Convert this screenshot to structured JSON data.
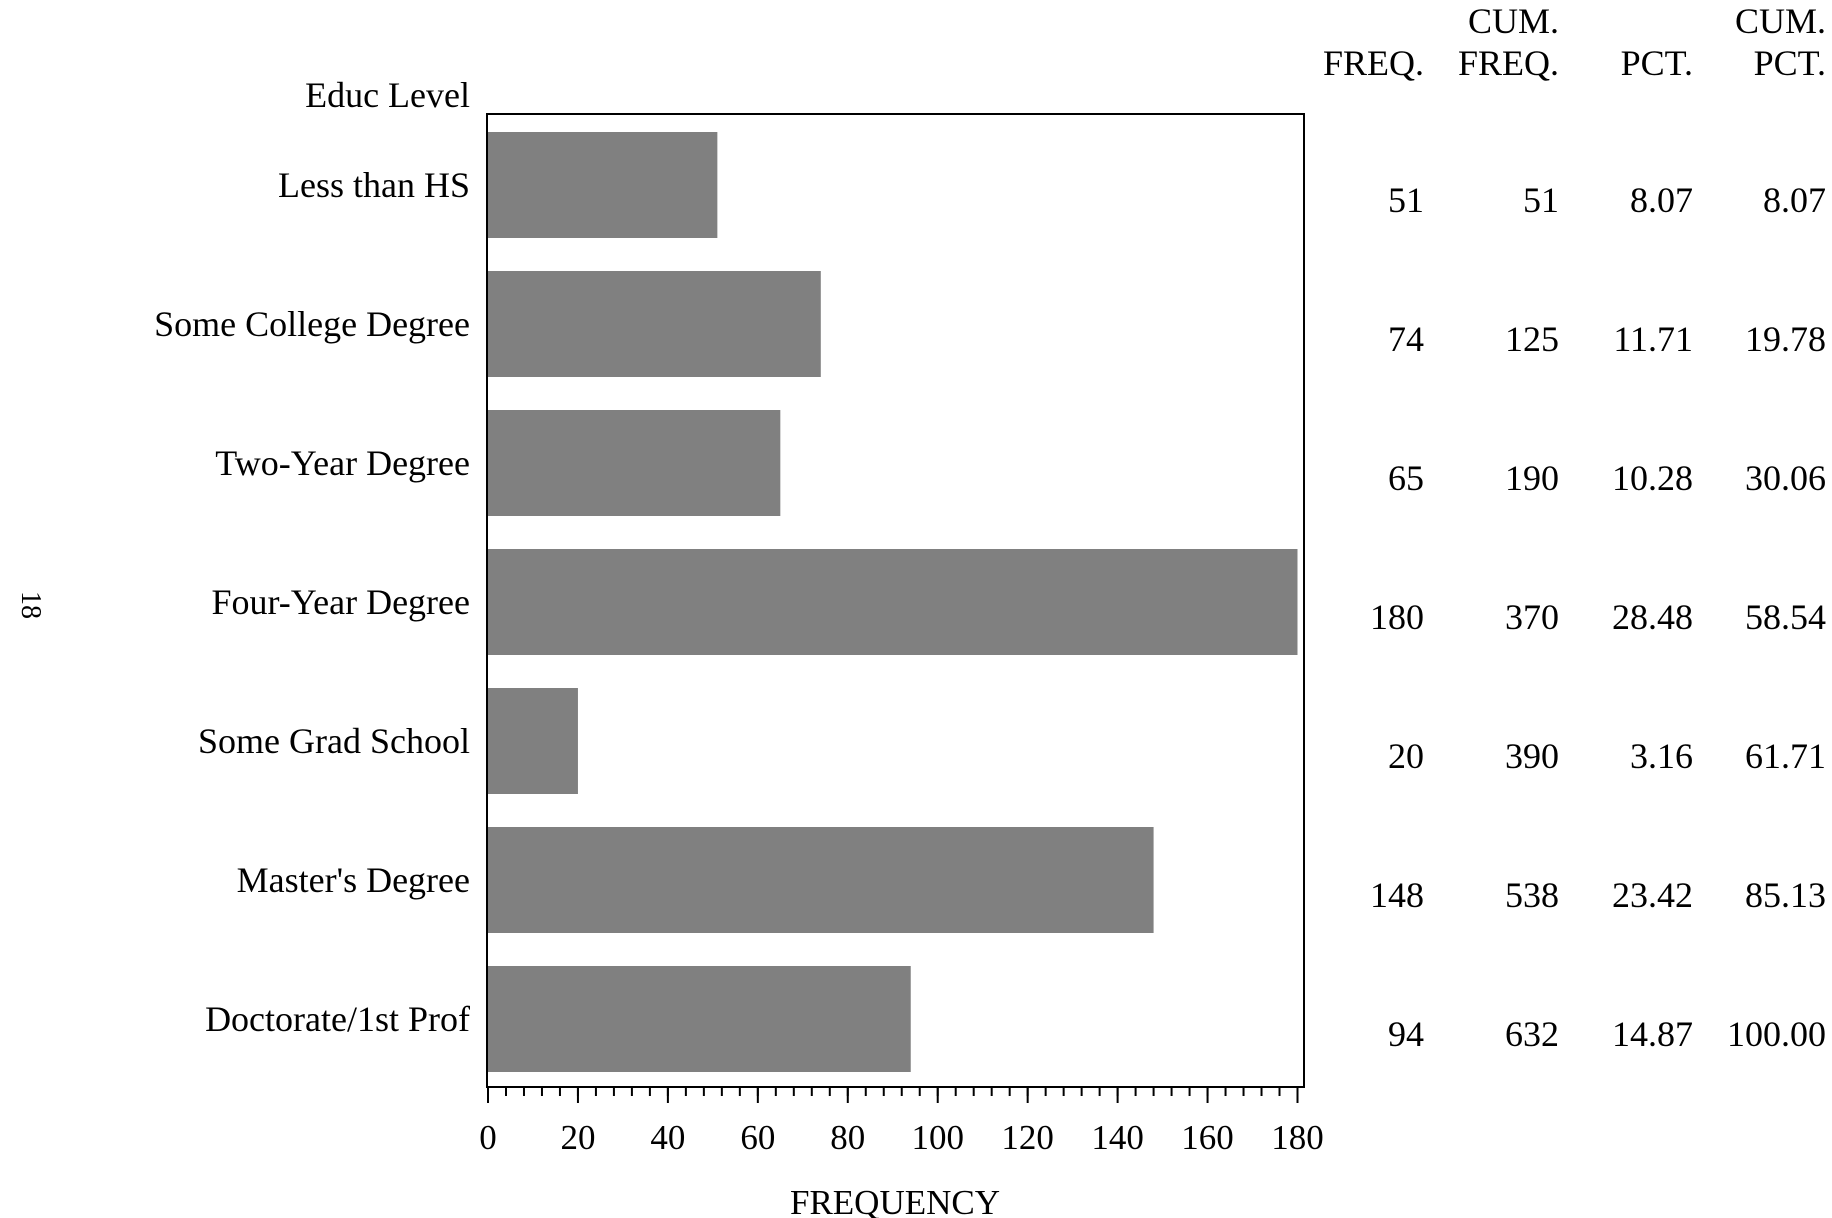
{
  "page_number": "18",
  "chart_data": {
    "type": "bar",
    "orientation": "horizontal",
    "category_axis_label": "Educ Level",
    "categories": [
      "Less than HS",
      "Some College Degree",
      "Two-Year Degree",
      "Four-Year Degree",
      "Some Grad School",
      "Master's Degree",
      "Doctorate/1st Prof"
    ],
    "values": [
      51,
      74,
      65,
      180,
      20,
      148,
      94
    ],
    "bar_color": "#808080",
    "xlabel": "FREQUENCY",
    "xlim": [
      0,
      181
    ],
    "xticks": [
      "0",
      "20",
      "40",
      "60",
      "80",
      "100",
      "120",
      "140",
      "160",
      "180"
    ],
    "minor_tick_step": 4,
    "grid": false,
    "stats_table": {
      "columns": [
        {
          "head": [
            "",
            "FREQ."
          ],
          "values": [
            "51",
            "74",
            "65",
            "180",
            "20",
            "148",
            "94"
          ]
        },
        {
          "head": [
            "CUM.",
            "FREQ."
          ],
          "values": [
            "51",
            "125",
            "190",
            "370",
            "390",
            "538",
            "632"
          ]
        },
        {
          "head": [
            "",
            "PCT."
          ],
          "values": [
            "8.07",
            "11.71",
            "10.28",
            "28.48",
            "3.16",
            "23.42",
            "14.87"
          ]
        },
        {
          "head": [
            "CUM.",
            "PCT."
          ],
          "values": [
            "8.07",
            "19.78",
            "30.06",
            "58.54",
            "61.71",
            "85.13",
            "100.00"
          ]
        }
      ]
    }
  }
}
